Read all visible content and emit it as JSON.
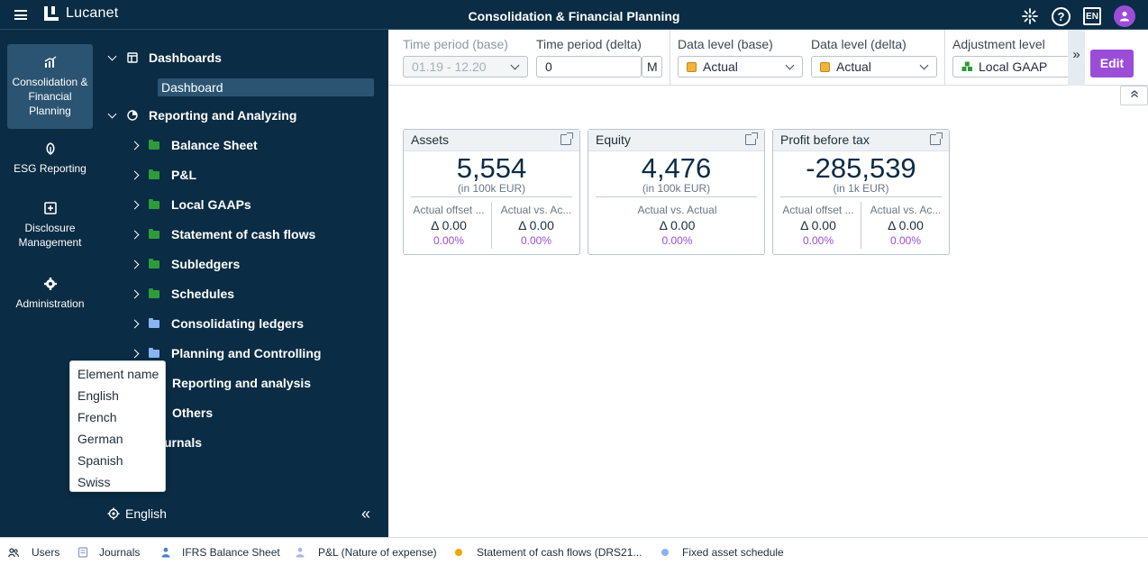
{
  "topbar": {
    "logo_text": "Lucanet",
    "title": "Consolidation & Financial Planning",
    "language_badge": "EN"
  },
  "rail": [
    {
      "label": "Consolidation & Financial Planning",
      "icon": "chart-icon"
    },
    {
      "label": "ESG Reporting",
      "icon": "leaf-icon"
    },
    {
      "label": "Disclosure Management",
      "icon": "disclosure-icon"
    },
    {
      "label": "Administration",
      "icon": "gear-icon"
    }
  ],
  "tree": {
    "dashboards": "Dashboards",
    "dashboard": "Dashboard",
    "reporting": "Reporting and Analyzing",
    "items": [
      "Balance Sheet",
      "P&L",
      "Local GAAPs",
      "Statement of cash flows",
      "Subledgers",
      "Schedules",
      "Consolidating ledgers",
      "Planning and Controlling",
      "Reporting and analysis",
      "Others"
    ],
    "journals_partial": "urnals",
    "current_language": "English"
  },
  "language_menu": [
    "Element name",
    "English",
    "French",
    "German",
    "Spanish",
    "Swiss"
  ],
  "filters": {
    "time_base_label": "Time period (base)",
    "time_base_value": "01.19 - 12.20",
    "time_delta_label": "Time period (delta)",
    "time_delta_value": "0",
    "time_delta_unit": "M",
    "data_base_label": "Data level (base)",
    "data_base_value": "Actual",
    "data_delta_label": "Data level (delta)",
    "data_delta_value": "Actual",
    "adjust_label": "Adjustment level",
    "adjust_value": "Local GAAP",
    "more": "»",
    "edit": "Edit"
  },
  "cards": [
    {
      "title": "Assets",
      "value": "5,554",
      "unit": "(in 100k EUR)",
      "subs": [
        {
          "label": "Actual offset ...",
          "delta": "Δ 0.00",
          "pct": "0.00%"
        },
        {
          "label": "Actual vs. Ac...",
          "delta": "Δ 0.00",
          "pct": "0.00%"
        }
      ]
    },
    {
      "title": "Equity",
      "value": "4,476",
      "unit": "(in 100k EUR)",
      "subs": [
        {
          "label": "Actual vs. Actual",
          "delta": "Δ 0.00",
          "pct": "0.00%"
        }
      ]
    },
    {
      "title": "Profit before tax",
      "value": "-285,539",
      "unit": "(in 1k EUR)",
      "subs": [
        {
          "label": "Actual offset ...",
          "delta": "Δ 0.00",
          "pct": "0.00%"
        },
        {
          "label": "Actual vs. Ac...",
          "delta": "Δ 0.00",
          "pct": "0.00%"
        }
      ]
    }
  ],
  "statusbar": [
    {
      "label": "Users",
      "icon": "users-icon"
    },
    {
      "label": "Journals",
      "icon": "journals-icon"
    },
    {
      "label": "IFRS Balance Sheet",
      "icon": "person-icon",
      "color": "#4a7fd6"
    },
    {
      "label": "P&L (Nature of expense)",
      "icon": "person-icon",
      "color": "#a9b4e8"
    },
    {
      "label": "Statement of cash flows (DRS21...",
      "icon": "dot-icon",
      "color": "#f0a500"
    },
    {
      "label": "Fixed asset schedule",
      "icon": "dot-icon",
      "color": "#8ab3f2"
    }
  ],
  "colors": {
    "navy": "#0a2c44",
    "accent_purple": "#9b4dd8",
    "folder_green": "#2e9b3a",
    "folder_blue": "#8ab3f2"
  }
}
